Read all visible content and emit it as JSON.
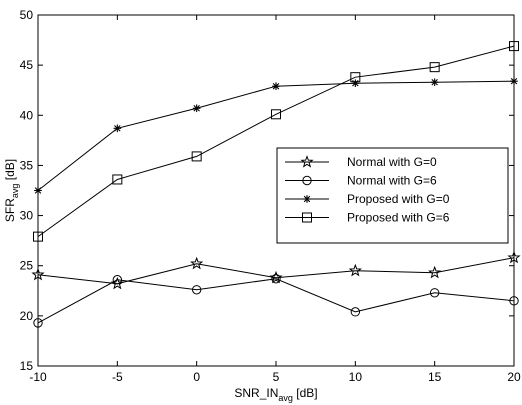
{
  "chart_data": {
    "type": "line",
    "title": "",
    "xlabel": {
      "main": "SNR_IN",
      "sub": "avg",
      "unit": " [dB]"
    },
    "ylabel": {
      "main": "SFR",
      "sub": "avg",
      "unit": " [dB]"
    },
    "xlim": [
      -10,
      20
    ],
    "ylim": [
      15,
      50
    ],
    "xticks": [
      -10,
      -5,
      0,
      5,
      10,
      15,
      20
    ],
    "yticks": [
      15,
      20,
      25,
      30,
      35,
      40,
      45,
      50
    ],
    "grid": false,
    "legend_position": "right-center",
    "x": [
      -10,
      -5,
      0,
      5,
      10,
      15,
      20
    ],
    "series": [
      {
        "name": "Normal with G=0",
        "marker": "pentagram",
        "values": [
          24.1,
          23.2,
          25.2,
          23.8,
          24.5,
          24.3,
          25.8
        ]
      },
      {
        "name": "Normal with G=6",
        "marker": "circle",
        "values": [
          19.3,
          23.6,
          22.6,
          23.7,
          20.4,
          22.3,
          21.5
        ]
      },
      {
        "name": "Proposed with G=0",
        "marker": "asterisk",
        "values": [
          32.5,
          38.7,
          40.7,
          42.9,
          43.2,
          43.3,
          43.4
        ]
      },
      {
        "name": "Proposed with G=6",
        "marker": "square",
        "values": [
          27.9,
          33.6,
          35.9,
          40.1,
          43.8,
          44.8,
          46.9
        ]
      }
    ],
    "colors": {
      "line": "#000000",
      "background": "#ffffff"
    }
  }
}
